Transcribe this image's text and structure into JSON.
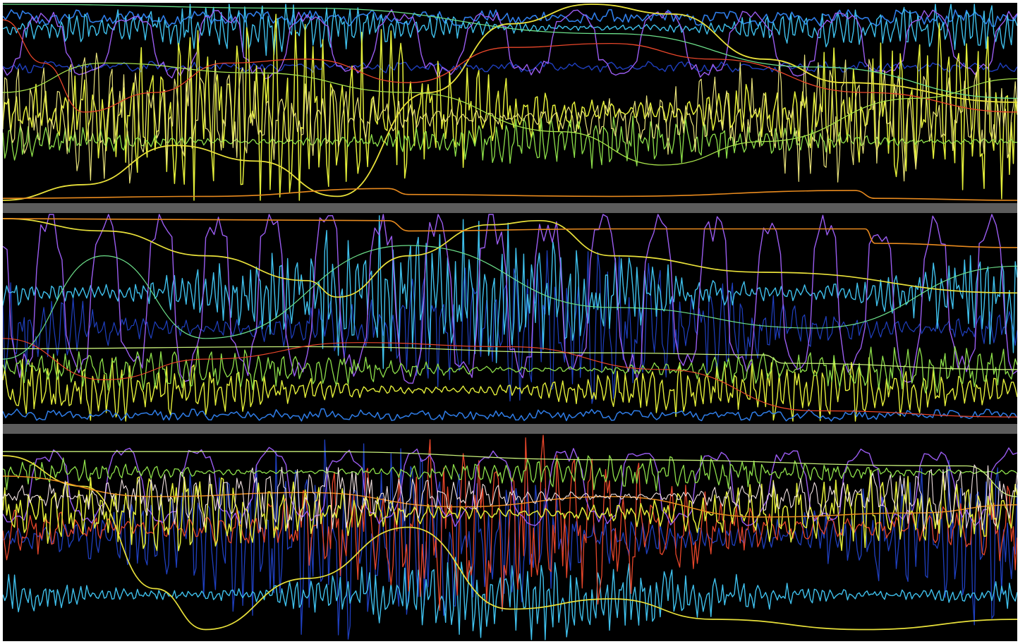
{
  "chart_data": {
    "type": "line",
    "title": "",
    "xlabel": "",
    "ylabel": "",
    "grid": false,
    "legend": "none",
    "background": "#000000",
    "separator_color": "#5c5c5c",
    "x_range": [
      0,
      1
    ],
    "y_range": [
      0,
      1
    ],
    "panels": [
      {
        "name": "",
        "series": [
          {
            "color": "#2f7de8",
            "kind": "flat",
            "level": 0.93,
            "jitter": 0.03,
            "freq": 0.3,
            "width": 1.6
          },
          {
            "color": "#3fc0ec",
            "kind": "noise",
            "level": 0.88,
            "amp": 0.12,
            "freq": 0.9,
            "width": 1.4
          },
          {
            "color": "#1f3fbf",
            "kind": "flat",
            "level": 0.68,
            "jitter": 0.02,
            "freq": 0.5,
            "width": 1.4
          },
          {
            "color": "#9a5cf0",
            "kind": "pulses",
            "level": 0.8,
            "amp": 0.18,
            "freq": 0.05,
            "width": 1.4
          },
          {
            "color": "#e3ee3a",
            "kind": "noise",
            "level": 0.45,
            "amp": 0.45,
            "freq": 0.75,
            "width": 1.5
          },
          {
            "color": "#8ee04a",
            "kind": "noise",
            "level": 0.3,
            "amp": 0.12,
            "freq": 0.8,
            "width": 1.3
          },
          {
            "color": "#e8e27a",
            "kind": "noise",
            "level": 0.42,
            "amp": 0.3,
            "freq": 0.55,
            "width": 1.2
          },
          {
            "color": "#e8e03a",
            "kind": "smooth",
            "points": [
              [
                0,
                0.0
              ],
              [
                0.08,
                0.08
              ],
              [
                0.17,
                0.28
              ],
              [
                0.25,
                0.2
              ],
              [
                0.33,
                0.02
              ],
              [
                0.42,
                0.55
              ],
              [
                0.5,
                0.9
              ],
              [
                0.58,
                1.0
              ],
              [
                0.66,
                0.95
              ],
              [
                0.75,
                0.72
              ],
              [
                0.83,
                0.6
              ],
              [
                1.0,
                0.5
              ]
            ],
            "width": 1.8
          },
          {
            "color": "#e8462a",
            "kind": "smooth",
            "points": [
              [
                0,
                0.92
              ],
              [
                0.04,
                0.7
              ],
              [
                0.08,
                0.45
              ],
              [
                0.15,
                0.55
              ],
              [
                0.22,
                0.7
              ],
              [
                0.3,
                0.72
              ],
              [
                0.4,
                0.6
              ],
              [
                0.5,
                0.78
              ],
              [
                0.6,
                0.8
              ],
              [
                0.7,
                0.72
              ],
              [
                0.85,
                0.55
              ],
              [
                1.0,
                0.45
              ]
            ],
            "width": 1.3
          },
          {
            "color": "#e88a1e",
            "kind": "smooth",
            "points": [
              [
                0,
                0.01
              ],
              [
                0.2,
                0.02
              ],
              [
                0.38,
                0.06
              ],
              [
                0.4,
                0.03
              ],
              [
                0.6,
                0.02
              ],
              [
                0.84,
                0.05
              ],
              [
                0.86,
                0.01
              ],
              [
                1.0,
                0.0
              ]
            ],
            "width": 1.6
          },
          {
            "color": "#6ce08a",
            "kind": "smooth",
            "points": [
              [
                0,
                1.0
              ],
              [
                0.3,
                0.98
              ],
              [
                0.6,
                0.85
              ],
              [
                0.8,
                0.68
              ],
              [
                1.0,
                0.52
              ]
            ],
            "width": 1.3
          },
          {
            "color": "#a6e04a",
            "kind": "smooth",
            "points": [
              [
                0,
                0.55
              ],
              [
                0.1,
                0.7
              ],
              [
                0.25,
                0.65
              ],
              [
                0.4,
                0.55
              ],
              [
                0.55,
                0.35
              ],
              [
                0.65,
                0.18
              ],
              [
                0.75,
                0.3
              ],
              [
                0.9,
                0.52
              ],
              [
                1.0,
                0.62
              ]
            ],
            "width": 1.3
          }
        ]
      },
      {
        "name": "",
        "series": [
          {
            "color": "#1f3fbf",
            "kind": "noise",
            "level": 0.45,
            "amp": 0.35,
            "freq": 0.7,
            "width": 1.2
          },
          {
            "color": "#3fc0ec",
            "kind": "noise",
            "level": 0.62,
            "amp": 0.35,
            "freq": 0.95,
            "width": 1.4
          },
          {
            "color": "#9a5cf0",
            "kind": "pulses",
            "level": 0.6,
            "amp": 0.45,
            "freq": 0.08,
            "width": 1.4
          },
          {
            "color": "#e3ee3a",
            "kind": "noise",
            "level": 0.15,
            "amp": 0.15,
            "freq": 0.8,
            "width": 1.4
          },
          {
            "color": "#8ee04a",
            "kind": "noise",
            "level": 0.25,
            "amp": 0.1,
            "freq": 0.6,
            "width": 1.3
          },
          {
            "color": "#2f7de8",
            "kind": "flat",
            "level": 0.03,
            "jitter": 0.02,
            "freq": 0.4,
            "width": 1.5
          },
          {
            "color": "#e8e03a",
            "kind": "smooth",
            "points": [
              [
                0,
                0.98
              ],
              [
                0.1,
                0.92
              ],
              [
                0.2,
                0.8
              ],
              [
                0.3,
                0.68
              ],
              [
                0.33,
                0.6
              ],
              [
                0.4,
                0.8
              ],
              [
                0.48,
                0.95
              ],
              [
                0.53,
                0.97
              ],
              [
                0.6,
                0.8
              ],
              [
                0.75,
                0.72
              ],
              [
                1.0,
                0.62
              ]
            ],
            "width": 1.7
          },
          {
            "color": "#e88a1e",
            "kind": "smooth",
            "points": [
              [
                0,
                0.98
              ],
              [
                0.38,
                0.97
              ],
              [
                0.4,
                0.92
              ],
              [
                0.6,
                0.93
              ],
              [
                0.85,
                0.93
              ],
              [
                0.86,
                0.86
              ],
              [
                1.0,
                0.84
              ]
            ],
            "width": 1.6
          },
          {
            "color": "#c8f07a",
            "kind": "smooth",
            "points": [
              [
                0,
                0.35
              ],
              [
                0.3,
                0.36
              ],
              [
                0.6,
                0.33
              ],
              [
                0.75,
                0.32
              ],
              [
                0.77,
                0.28
              ],
              [
                1.0,
                0.25
              ]
            ],
            "width": 1.3
          },
          {
            "color": "#e8462a",
            "kind": "smooth",
            "points": [
              [
                0,
                0.4
              ],
              [
                0.1,
                0.2
              ],
              [
                0.2,
                0.3
              ],
              [
                0.35,
                0.38
              ],
              [
                0.5,
                0.36
              ],
              [
                0.65,
                0.25
              ],
              [
                0.8,
                0.05
              ],
              [
                1.0,
                0.02
              ]
            ],
            "width": 1.2
          },
          {
            "color": "#6ce08a",
            "kind": "smooth",
            "points": [
              [
                0,
                0.3
              ],
              [
                0.1,
                0.8
              ],
              [
                0.2,
                0.4
              ],
              [
                0.4,
                0.85
              ],
              [
                0.6,
                0.55
              ],
              [
                0.8,
                0.45
              ],
              [
                1.0,
                0.75
              ]
            ],
            "width": 1.2
          }
        ]
      },
      {
        "name": "",
        "series": [
          {
            "color": "#1f3fbf",
            "kind": "noise",
            "level": 0.5,
            "amp": 0.45,
            "freq": 0.75,
            "width": 1.3
          },
          {
            "color": "#3fc0ec",
            "kind": "noise",
            "level": 0.22,
            "amp": 0.2,
            "freq": 1.0,
            "width": 1.4
          },
          {
            "color": "#e8462a",
            "kind": "noise",
            "level": 0.55,
            "amp": 0.4,
            "freq": 0.45,
            "width": 1.3
          },
          {
            "color": "#9a5cf0",
            "kind": "pulses",
            "level": 0.75,
            "amp": 0.2,
            "freq": 0.06,
            "width": 1.4
          },
          {
            "color": "#e3ee3a",
            "kind": "noise",
            "level": 0.62,
            "amp": 0.18,
            "freq": 0.6,
            "width": 1.5
          },
          {
            "color": "#8ee04a",
            "kind": "noise",
            "level": 0.82,
            "amp": 0.08,
            "freq": 0.7,
            "width": 1.3
          },
          {
            "color": "#e8e03a",
            "kind": "smooth",
            "points": [
              [
                0,
                0.9
              ],
              [
                0.08,
                0.75
              ],
              [
                0.15,
                0.25
              ],
              [
                0.2,
                0.05
              ],
              [
                0.3,
                0.3
              ],
              [
                0.4,
                0.55
              ],
              [
                0.5,
                0.15
              ],
              [
                0.6,
                0.2
              ],
              [
                0.7,
                0.1
              ],
              [
                0.85,
                0.05
              ],
              [
                1.0,
                0.1
              ]
            ],
            "width": 1.7
          },
          {
            "color": "#e88a1e",
            "kind": "smooth",
            "points": [
              [
                0,
                0.8
              ],
              [
                0.15,
                0.7
              ],
              [
                0.3,
                0.72
              ],
              [
                0.45,
                0.65
              ],
              [
                0.6,
                0.7
              ],
              [
                0.75,
                0.6
              ],
              [
                0.9,
                0.62
              ],
              [
                1.0,
                0.66
              ]
            ],
            "width": 1.5
          },
          {
            "color": "#c8f07a",
            "kind": "smooth",
            "points": [
              [
                0,
                0.92
              ],
              [
                0.3,
                0.92
              ],
              [
                0.6,
                0.88
              ],
              [
                0.95,
                0.85
              ],
              [
                1.0,
                0.7
              ]
            ],
            "width": 1.3
          },
          {
            "color": "#f0e0e0",
            "kind": "noise",
            "level": 0.7,
            "amp": 0.15,
            "freq": 0.5,
            "width": 1.1
          }
        ]
      }
    ]
  }
}
